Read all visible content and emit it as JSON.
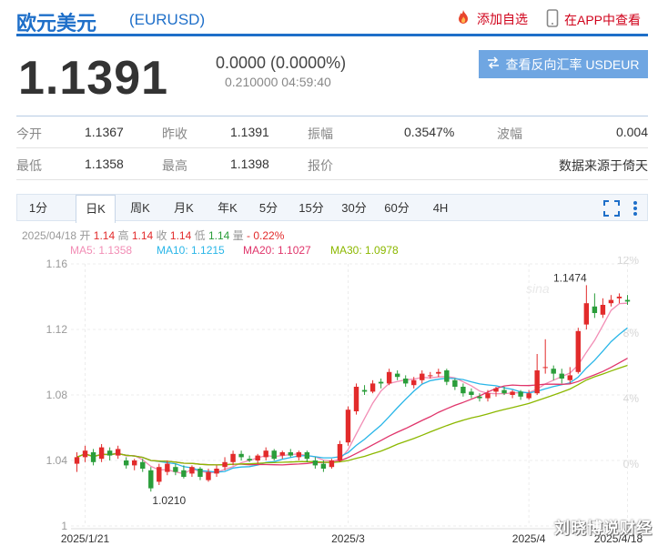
{
  "header": {
    "title": "欧元美元",
    "code": "(EURUSD)",
    "add_watchlist": "添加自选",
    "view_in_app": "在APP中查看"
  },
  "quote": {
    "price": "1.1391",
    "change": "0.0000 (0.0000%)",
    "subline": "0.210000 04:59:40",
    "reverse_button": "查看反向汇率 USDEUR"
  },
  "stats": [
    [
      {
        "label": "今开",
        "value": "1.1367"
      },
      {
        "label": "昨收",
        "value": "1.1391"
      },
      {
        "label": "振幅",
        "value": "0.3547%"
      },
      {
        "label": "波幅",
        "value": "0.004"
      }
    ],
    [
      {
        "label": "最低",
        "value": "1.1358"
      },
      {
        "label": "最高",
        "value": "1.1398"
      },
      {
        "label": "报价",
        "value": ""
      },
      {
        "label": "",
        "value": "数据来源于倚天"
      }
    ]
  ],
  "tabs": [
    "1分",
    "日K",
    "周K",
    "月K",
    "年K",
    "5分",
    "15分",
    "30分",
    "60分",
    "4H"
  ],
  "active_tab": "日K",
  "info_line": {
    "date": "2025/04/18",
    "open_label": "开",
    "open": "1.14",
    "high_label": "高",
    "high": "1.14",
    "close_label": "收",
    "close": "1.14",
    "low_label": "低",
    "low": "1.14",
    "vol_label": "量",
    "change": "- 0.22%"
  },
  "ma_legend": [
    {
      "label": "MA5: 1.1358",
      "color": "#f28db5"
    },
    {
      "label": "MA10: 1.1215",
      "color": "#29b6e8"
    },
    {
      "label": "MA20: 1.1027",
      "color": "#e0356b"
    },
    {
      "label": "MA30: 1.0978",
      "color": "#8cb800"
    }
  ],
  "colors": {
    "up": "#e22b2b",
    "down": "#2a9d3a",
    "brand": "#1e6fc9"
  },
  "icons": [
    "flame-icon",
    "phone-icon",
    "swap-icon",
    "fullscreen-icon",
    "settings-icon"
  ],
  "watermark": "刘晓博说财经",
  "chart_data": {
    "type": "candlestick",
    "y_ticks": [
      "1.16",
      "1.12",
      "1.08",
      "1.04",
      "1"
    ],
    "pct_ticks": [
      "12%",
      "8%",
      "4%",
      "0%"
    ],
    "x_labels": [
      "2025/1/21",
      "2025/3",
      "2025/4",
      "2025/4/18"
    ],
    "ylim": [
      1.0,
      1.16
    ],
    "annotations": [
      {
        "text": "1.1474",
        "type": "max"
      },
      {
        "text": "1.0210",
        "type": "min"
      }
    ],
    "candles": [
      [
        1.038,
        1.042,
        1.045,
        1.033
      ],
      [
        1.042,
        1.046,
        1.049,
        1.039
      ],
      [
        1.045,
        1.039,
        1.047,
        1.037
      ],
      [
        1.041,
        1.048,
        1.05,
        1.039
      ],
      [
        1.046,
        1.043,
        1.048,
        1.04
      ],
      [
        1.043,
        1.047,
        1.049,
        1.041
      ],
      [
        1.04,
        1.037,
        1.042,
        1.035
      ],
      [
        1.037,
        1.04,
        1.041,
        1.034
      ],
      [
        1.039,
        1.035,
        1.041,
        1.033
      ],
      [
        1.034,
        1.023,
        1.036,
        1.021
      ],
      [
        1.027,
        1.036,
        1.038,
        1.025
      ],
      [
        1.033,
        1.038,
        1.04,
        1.031
      ],
      [
        1.036,
        1.033,
        1.038,
        1.031
      ],
      [
        1.034,
        1.03,
        1.037,
        1.029
      ],
      [
        1.032,
        1.036,
        1.037,
        1.03
      ],
      [
        1.035,
        1.03,
        1.036,
        1.028
      ],
      [
        1.028,
        1.033,
        1.035,
        1.027
      ],
      [
        1.032,
        1.035,
        1.037,
        1.03
      ],
      [
        1.036,
        1.039,
        1.042,
        1.034
      ],
      [
        1.039,
        1.044,
        1.046,
        1.037
      ],
      [
        1.044,
        1.042,
        1.046,
        1.04
      ],
      [
        1.041,
        1.04,
        1.043,
        1.039
      ],
      [
        1.04,
        1.043,
        1.044,
        1.038
      ],
      [
        1.042,
        1.046,
        1.048,
        1.04
      ],
      [
        1.046,
        1.041,
        1.047,
        1.04
      ],
      [
        1.043,
        1.045,
        1.046,
        1.041
      ],
      [
        1.045,
        1.043,
        1.047,
        1.042
      ],
      [
        1.042,
        1.045,
        1.046,
        1.04
      ],
      [
        1.045,
        1.041,
        1.046,
        1.039
      ],
      [
        1.04,
        1.037,
        1.042,
        1.035
      ],
      [
        1.038,
        1.035,
        1.04,
        1.033
      ],
      [
        1.036,
        1.04,
        1.041,
        1.035
      ],
      [
        1.04,
        1.05,
        1.052,
        1.039
      ],
      [
        1.051,
        1.071,
        1.073,
        1.049
      ],
      [
        1.07,
        1.085,
        1.087,
        1.068
      ],
      [
        1.083,
        1.082,
        1.086,
        1.08
      ],
      [
        1.082,
        1.087,
        1.089,
        1.081
      ],
      [
        1.088,
        1.087,
        1.09,
        1.084
      ],
      [
        1.087,
        1.094,
        1.096,
        1.086
      ],
      [
        1.093,
        1.091,
        1.095,
        1.089
      ],
      [
        1.09,
        1.087,
        1.092,
        1.085
      ],
      [
        1.086,
        1.089,
        1.091,
        1.084
      ],
      [
        1.089,
        1.093,
        1.095,
        1.087
      ],
      [
        1.092,
        1.092,
        1.094,
        1.09
      ],
      [
        1.093,
        1.094,
        1.096,
        1.091
      ],
      [
        1.095,
        1.088,
        1.096,
        1.086
      ],
      [
        1.089,
        1.085,
        1.09,
        1.083
      ],
      [
        1.085,
        1.081,
        1.087,
        1.079
      ],
      [
        1.082,
        1.08,
        1.084,
        1.078
      ],
      [
        1.079,
        1.078,
        1.081,
        1.076
      ],
      [
        1.078,
        1.081,
        1.083,
        1.076
      ],
      [
        1.082,
        1.084,
        1.085,
        1.079
      ],
      [
        1.083,
        1.081,
        1.085,
        1.08
      ],
      [
        1.08,
        1.082,
        1.083,
        1.078
      ],
      [
        1.082,
        1.079,
        1.083,
        1.077
      ],
      [
        1.078,
        1.081,
        1.083,
        1.077
      ],
      [
        1.081,
        1.095,
        1.105,
        1.08
      ],
      [
        1.097,
        1.097,
        1.114,
        1.093
      ],
      [
        1.096,
        1.093,
        1.098,
        1.089
      ],
      [
        1.093,
        1.09,
        1.096,
        1.087
      ],
      [
        1.089,
        1.092,
        1.097,
        1.087
      ],
      [
        1.094,
        1.119,
        1.121,
        1.093
      ],
      [
        1.123,
        1.136,
        1.147,
        1.12
      ],
      [
        1.134,
        1.13,
        1.142,
        1.127
      ],
      [
        1.129,
        1.135,
        1.139,
        1.127
      ],
      [
        1.136,
        1.138,
        1.141,
        1.134
      ],
      [
        1.139,
        1.14,
        1.142,
        1.136
      ],
      [
        1.138,
        1.137,
        1.141,
        1.135
      ]
    ]
  }
}
